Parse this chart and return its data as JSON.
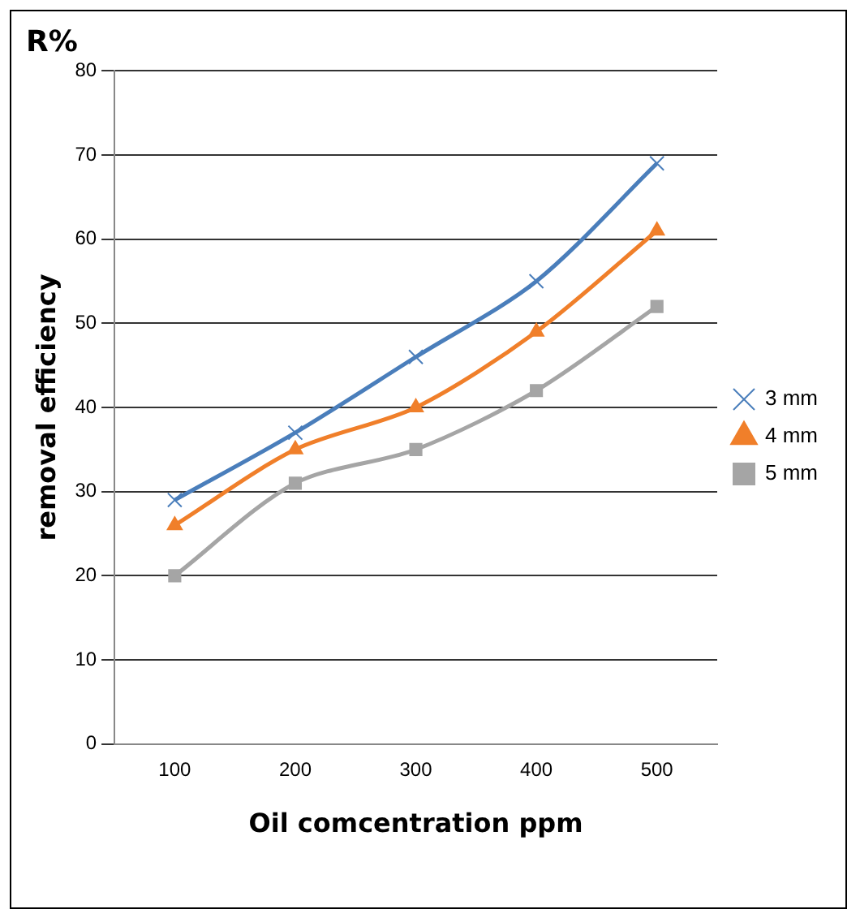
{
  "chart_data": {
    "type": "line",
    "title": "R%",
    "xlabel": "Oil comcentration ppm",
    "ylabel": "removal efficiency",
    "categories": [
      "100",
      "200",
      "300",
      "400",
      "500"
    ],
    "series": [
      {
        "name": "3 mm",
        "color": "#4a7ebb",
        "marker": "cross",
        "values": [
          29,
          37,
          46,
          55,
          69
        ]
      },
      {
        "name": "4 mm",
        "color": "#f07f2a",
        "marker": "triangle",
        "values": [
          26,
          35,
          40,
          49,
          61
        ]
      },
      {
        "name": "5 mm",
        "color": "#a5a5a5",
        "marker": "square",
        "values": [
          20,
          31,
          35,
          42,
          52
        ]
      }
    ],
    "ylim": [
      0,
      80
    ],
    "yticks": [
      0,
      10,
      20,
      30,
      40,
      50,
      60,
      70,
      80
    ],
    "grid": "y",
    "legend": "right",
    "line_style": "solid"
  }
}
